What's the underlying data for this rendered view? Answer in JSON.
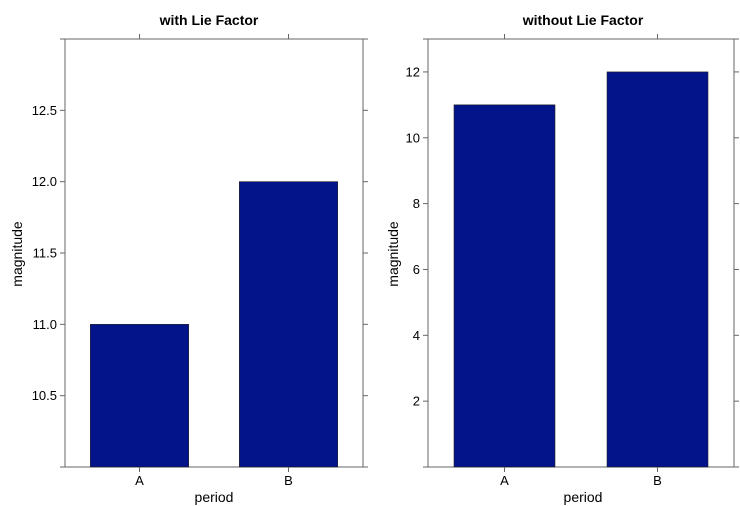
{
  "chart_data": [
    {
      "type": "bar",
      "title": "with Lie Factor",
      "xlabel": "period",
      "ylabel": "magnitude",
      "categories": [
        "A",
        "B"
      ],
      "values": [
        11,
        12
      ],
      "ylim": [
        10,
        13
      ],
      "yticks": [
        "10.5",
        "11.0",
        "11.5",
        "12.0",
        "12.5"
      ],
      "grid": false,
      "bar_color": "#03138a"
    },
    {
      "type": "bar",
      "title": "without Lie Factor",
      "xlabel": "period",
      "ylabel": "magnitude",
      "categories": [
        "A",
        "B"
      ],
      "values": [
        11,
        12
      ],
      "ylim": [
        0,
        13
      ],
      "yticks": [
        "2",
        "4",
        "6",
        "8",
        "10",
        "12"
      ],
      "grid": false,
      "bar_color": "#03138a"
    }
  ]
}
